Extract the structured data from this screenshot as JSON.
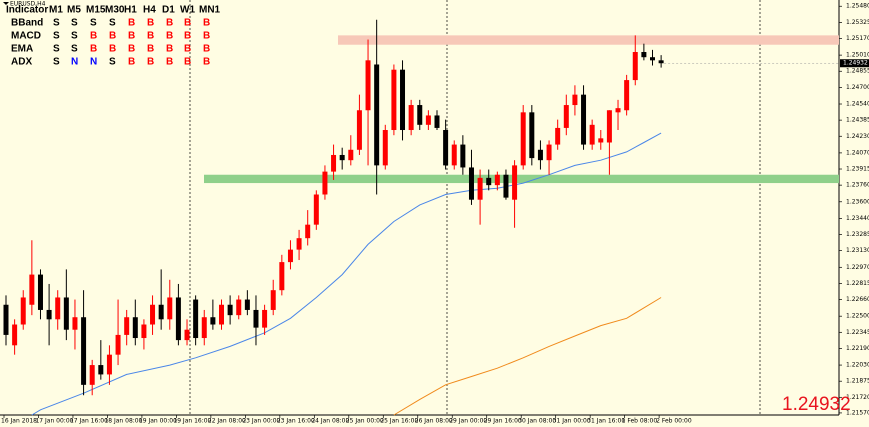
{
  "symbol": "EURUSD,H4",
  "indicator_table": {
    "header": [
      "Indicator",
      "M1",
      "M5",
      "M15",
      "M30",
      "H1",
      "H4",
      "D1",
      "W1",
      "MN1"
    ],
    "rows": [
      {
        "label": "BBand",
        "signals": [
          "S",
          "S",
          "S",
          "S",
          "B",
          "B",
          "B",
          "B",
          "B"
        ]
      },
      {
        "label": "MACD",
        "signals": [
          "S",
          "S",
          "B",
          "B",
          "B",
          "B",
          "B",
          "B",
          "B"
        ]
      },
      {
        "label": "EMA",
        "signals": [
          "S",
          "S",
          "B",
          "B",
          "B",
          "B",
          "B",
          "B",
          "B"
        ]
      },
      {
        "label": "ADX",
        "signals": [
          "S",
          "N",
          "N",
          "S",
          "B",
          "B",
          "B",
          "B",
          "B"
        ]
      }
    ],
    "signal_colors": {
      "S": "#000000",
      "B": "#ff0000",
      "N": "#0000ff"
    }
  },
  "chart_data": {
    "type": "candlestick",
    "categories": [
      "16 Jan 2018",
      null,
      null,
      null,
      "17 Jan 00:00",
      null,
      null,
      null,
      "17 Jan 16:00",
      null,
      null,
      null,
      "18 Jan 08:00",
      null,
      null,
      null,
      "19 Jan 00:00",
      null,
      null,
      null,
      "19 Jan 16:00",
      null,
      null,
      null,
      "22 Jan 08:00",
      null,
      null,
      null,
      "23 Jan 00:00",
      null,
      null,
      null,
      "23 Jan 16:00",
      null,
      null,
      null,
      "24 Jan 08:00",
      null,
      null,
      null,
      "25 Jan 00:00",
      null,
      null,
      null,
      "25 Jan 16:00",
      null,
      null,
      null,
      "26 Jan 08:00",
      null,
      null,
      null,
      "29 Jan 00:00",
      null,
      null,
      null,
      "29 Jan 16:00",
      null,
      null,
      null,
      "30 Jan 08:00",
      null,
      null,
      null,
      "31 Jan 00:00",
      null,
      null,
      null,
      "31 Jan 16:00",
      null,
      null,
      null,
      "1 Feb 08:00",
      null,
      null,
      null,
      "2 Feb 00:00"
    ],
    "open": [
      1.2261,
      1.2222,
      1.2242,
      1.2261,
      1.229,
      1.2256,
      1.2247,
      1.2268,
      1.2237,
      1.2249,
      1.2184,
      1.2203,
      1.2194,
      1.2213,
      1.2232,
      1.2249,
      1.2229,
      1.2242,
      1.2261,
      1.2247,
      1.2268,
      1.2227,
      1.2266,
      1.2229,
      1.2249,
      1.2242,
      1.2261,
      1.2251,
      1.2266,
      1.2256,
      1.2239,
      1.2256,
      1.2275,
      1.2302,
      1.2314,
      1.2325,
      1.2338,
      1.2367,
      1.2389,
      1.2405,
      1.24,
      1.241,
      1.2448,
      1.2492,
      1.2395,
      1.2429,
      1.2487,
      1.2429,
      1.2453,
      1.2434,
      1.2443,
      1.2429,
      1.2395,
      1.2415,
      1.2393,
      1.2362,
      1.2383,
      1.2376,
      1.2386,
      1.2362,
      1.2395,
      1.2446,
      1.241,
      1.24,
      1.2415,
      1.2431,
      1.2453,
      1.2463,
      1.2415,
      1.2417,
      1.2417,
      1.2446,
      1.2448,
      1.2477,
      1.2504,
      1.2499,
      1.2496
    ],
    "high": [
      1.227,
      1.2247,
      1.2275,
      1.2323,
      1.2295,
      1.2281,
      1.2275,
      1.2295,
      1.2266,
      1.2275,
      1.2208,
      1.2227,
      1.2222,
      1.2266,
      1.2256,
      1.2266,
      1.2247,
      1.227,
      1.2295,
      1.2285,
      1.2281,
      1.2247,
      1.227,
      1.2256,
      1.2266,
      1.2266,
      1.227,
      1.227,
      1.2275,
      1.227,
      1.2261,
      1.2285,
      1.2309,
      1.2323,
      1.2333,
      1.2352,
      1.2371,
      1.2395,
      1.2415,
      1.2412,
      1.2424,
      1.2463,
      1.2516,
      1.2535,
      1.2434,
      1.2492,
      1.2496,
      1.2458,
      1.2458,
      1.2448,
      1.2448,
      1.2439,
      1.2419,
      1.2424,
      1.241,
      1.2391,
      1.2391,
      1.2389,
      1.2391,
      1.24,
      1.2453,
      1.2453,
      1.2419,
      1.2419,
      1.2439,
      1.2463,
      1.2472,
      1.2472,
      1.2439,
      1.2429,
      1.2448,
      1.2458,
      1.2482,
      1.252,
      1.2512,
      1.2506,
      1.2501
    ],
    "low": [
      1.2222,
      1.2213,
      1.2237,
      1.2251,
      1.2247,
      1.2222,
      1.2237,
      1.2227,
      1.2218,
      1.2174,
      1.2174,
      1.2189,
      1.2184,
      1.2203,
      1.2222,
      1.2222,
      1.2218,
      1.2232,
      1.2237,
      1.2237,
      1.2222,
      1.2222,
      1.2222,
      1.2222,
      1.2237,
      1.2237,
      1.2242,
      1.2247,
      1.2251,
      1.2222,
      1.2232,
      1.2251,
      1.227,
      1.2295,
      1.2304,
      1.2318,
      1.2333,
      1.2362,
      1.2381,
      1.2391,
      1.2395,
      1.2405,
      1.2395,
      1.2367,
      1.2391,
      1.2424,
      1.2419,
      1.2424,
      1.2429,
      1.2429,
      1.2429,
      1.2391,
      1.2391,
      1.2386,
      1.2357,
      1.2338,
      1.2371,
      1.2371,
      1.2362,
      1.2335,
      1.2391,
      1.2395,
      1.2391,
      1.2386,
      1.241,
      1.2424,
      1.2443,
      1.241,
      1.241,
      1.241,
      1.2386,
      1.2429,
      1.2443,
      1.2472,
      1.2496,
      1.2491,
      1.2489
    ],
    "close": [
      1.2232,
      1.2242,
      1.2268,
      1.229,
      1.2256,
      1.2247,
      1.2268,
      1.2237,
      1.2249,
      1.2184,
      1.2203,
      1.2194,
      1.2213,
      1.2232,
      1.2249,
      1.2229,
      1.2242,
      1.2261,
      1.2247,
      1.2268,
      1.2227,
      1.2237,
      1.2229,
      1.2249,
      1.2242,
      1.2261,
      1.2251,
      1.2266,
      1.2256,
      1.2239,
      1.2256,
      1.2275,
      1.2302,
      1.2314,
      1.2325,
      1.2338,
      1.2367,
      1.2389,
      1.2405,
      1.24,
      1.241,
      1.2448,
      1.2496,
      1.2395,
      1.2429,
      1.2487,
      1.2429,
      1.2453,
      1.2434,
      1.2443,
      1.2431,
      1.2395,
      1.2415,
      1.2393,
      1.2362,
      1.2383,
      1.2376,
      1.2386,
      1.2364,
      1.2395,
      1.2446,
      1.2402,
      1.24,
      1.2415,
      1.2431,
      1.2453,
      1.2463,
      1.2415,
      1.2434,
      1.2421,
      1.2448,
      1.245,
      1.2477,
      1.2504,
      1.2499,
      1.2496,
      1.24932
    ],
    "up_color": "#ff0000",
    "down_color": "#000000",
    "ylim": [
      1.2155,
      1.2554
    ],
    "yticks": [
      {
        "value": 1.2548,
        "label": "1.25480"
      },
      {
        "value": 1.25325,
        "label": "1.25325"
      },
      {
        "value": 1.2517,
        "label": "1.25170"
      },
      {
        "value": 1.2501,
        "label": "1.25010"
      },
      {
        "value": 1.24855,
        "label": "1.24855"
      },
      {
        "value": 1.247,
        "label": "1.24700"
      },
      {
        "value": 1.2454,
        "label": "1.24540"
      },
      {
        "value": 1.24385,
        "label": "1.24385"
      },
      {
        "value": 1.2423,
        "label": "1.24230"
      },
      {
        "value": 1.2407,
        "label": "1.24070"
      },
      {
        "value": 1.23915,
        "label": "1.23915"
      },
      {
        "value": 1.2376,
        "label": "1.23760"
      },
      {
        "value": 1.236,
        "label": "1.23600"
      },
      {
        "value": 1.2344,
        "label": "1.23440"
      },
      {
        "value": 1.23285,
        "label": "1.23285"
      },
      {
        "value": 1.2313,
        "label": "1.23130"
      },
      {
        "value": 1.2297,
        "label": "1.22970"
      },
      {
        "value": 1.22815,
        "label": "1.22815"
      },
      {
        "value": 1.2266,
        "label": "1.22660"
      },
      {
        "value": 1.225,
        "label": "1.22500"
      },
      {
        "value": 1.22345,
        "label": "1.22345"
      },
      {
        "value": 1.2219,
        "label": "1.22190"
      },
      {
        "value": 1.2203,
        "label": "1.22030"
      },
      {
        "value": 1.21875,
        "label": "1.21875"
      },
      {
        "value": 1.2172,
        "label": "1.21720"
      },
      {
        "value": 1.2157,
        "label": "1.21570"
      }
    ],
    "moving_averages": [
      {
        "color": "#4a86e8",
        "x": [
          3,
          4,
          9,
          14,
          19,
          22,
          26,
          30,
          33,
          36,
          39,
          42,
          45,
          48,
          51,
          54,
          57,
          60,
          63,
          66,
          69,
          72,
          74,
          76
        ],
        "values": [
          1.2155,
          1.216,
          1.2176,
          1.2194,
          1.2203,
          1.221,
          1.2221,
          1.2234,
          1.2248,
          1.2268,
          1.229,
          1.2319,
          1.2341,
          1.2357,
          1.2367,
          1.2371,
          1.2373,
          1.2378,
          1.2386,
          1.2395,
          1.24,
          1.2408,
          1.2417,
          1.2426
        ]
      },
      {
        "color": "#f08a1c",
        "x": [
          45,
          48,
          51,
          54,
          57,
          60,
          63,
          66,
          69,
          72,
          76
        ],
        "values": [
          1.2155,
          1.217,
          1.2184,
          1.2192,
          1.22,
          1.221,
          1.2221,
          1.2231,
          1.2241,
          1.2248,
          1.2268
        ]
      }
    ],
    "zones": [
      {
        "from": 1.2511,
        "to": 1.252,
        "color": "#f7c8b8"
      },
      {
        "from": 1.2378,
        "to": 1.2386,
        "color": "#8fd08a"
      }
    ]
  }
}
